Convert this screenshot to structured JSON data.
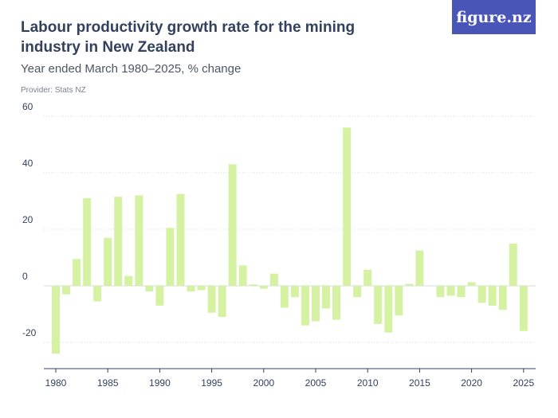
{
  "header": {
    "title": "Labour productivity growth rate for the mining industry in New Zealand",
    "subtitle": "Year ended March 1980–2025, % change",
    "provider": "Provider: Stats NZ",
    "logo_text": "figure.nz"
  },
  "colors": {
    "bar": "#d4f2a2",
    "grid": "#d8dbe2",
    "axis": "#34415d",
    "logo_bg": "#4a55b8"
  },
  "chart_data": {
    "type": "bar",
    "title": "Labour productivity growth rate for the mining industry in New Zealand",
    "subtitle": "Year ended March 1980–2025, % change",
    "xlabel": "",
    "ylabel": "",
    "ylim": [
      -30,
      60
    ],
    "yticks": [
      60,
      40,
      20,
      0,
      -20
    ],
    "xticks": [
      1980,
      1985,
      1990,
      1995,
      2000,
      2005,
      2010,
      2015,
      2020,
      2025
    ],
    "grid": true,
    "x": [
      1980,
      1981,
      1982,
      1983,
      1984,
      1985,
      1986,
      1987,
      1988,
      1989,
      1990,
      1991,
      1992,
      1993,
      1994,
      1995,
      1996,
      1997,
      1998,
      1999,
      2000,
      2001,
      2002,
      2003,
      2004,
      2005,
      2006,
      2007,
      2008,
      2009,
      2010,
      2011,
      2012,
      2013,
      2014,
      2015,
      2016,
      2017,
      2018,
      2019,
      2020,
      2021,
      2022,
      2023,
      2024,
      2025
    ],
    "values": [
      -24,
      -3,
      9.5,
      31,
      -5.5,
      17,
      31.5,
      3.5,
      32,
      -2,
      -7,
      20.5,
      32.5,
      -2,
      -1.5,
      -9.5,
      -11,
      43,
      7.2,
      0.5,
      -1,
      4.3,
      -7.7,
      -4,
      -14,
      -12.5,
      -8,
      -12,
      56,
      -4,
      5.7,
      -13.5,
      -16.5,
      -10.5,
      0.7,
      12.5,
      null,
      -4,
      -3.5,
      -4,
      1.3,
      -6,
      -7,
      -8.5,
      15,
      -16
    ]
  }
}
